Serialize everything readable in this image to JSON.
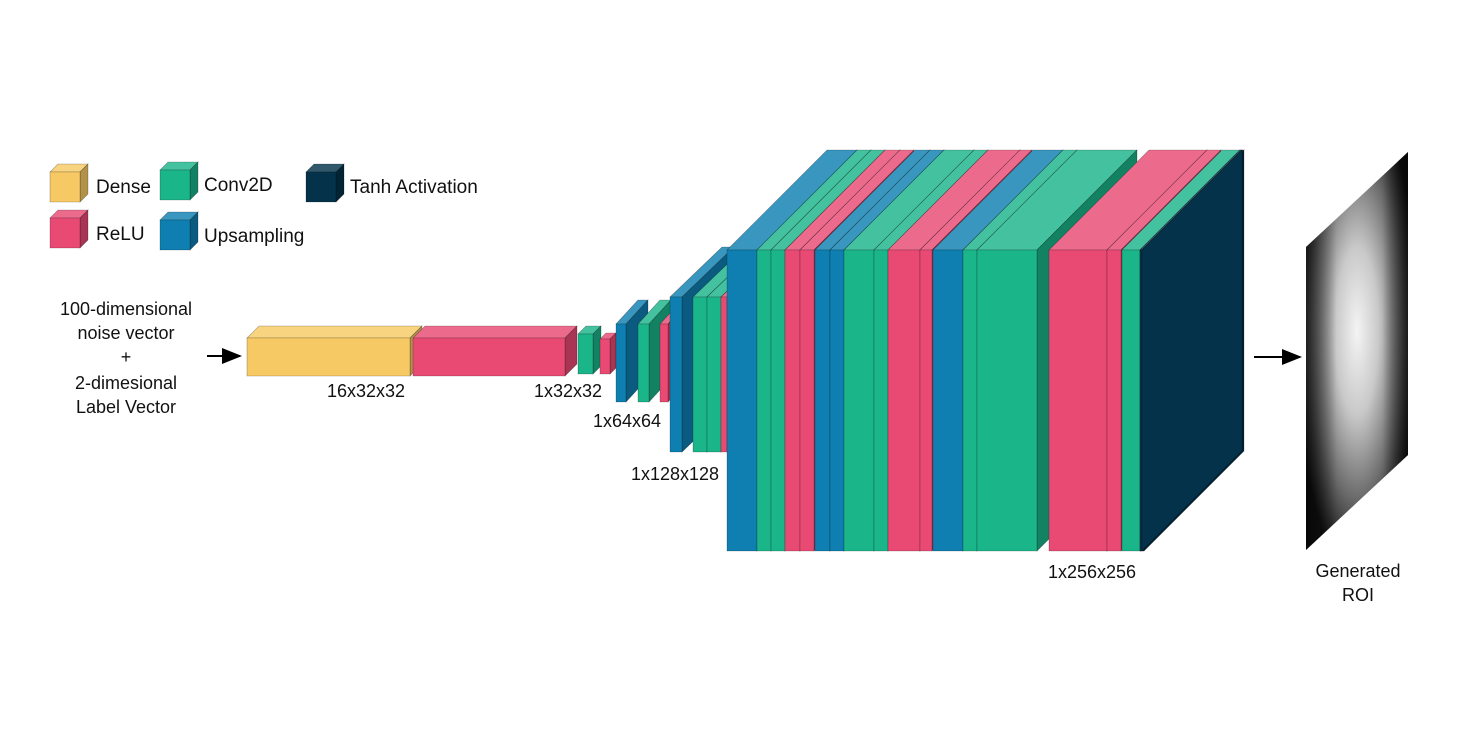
{
  "legend": {
    "dense": "Dense",
    "conv2d": "Conv2D",
    "tanh": "Tanh Activation",
    "relu": "ReLU",
    "upsampling": "Upsampling"
  },
  "input": {
    "line1": "100-dimensional",
    "line2": "noise vector",
    "line3": "+",
    "line4": "2-dimesional",
    "line5": "Label Vector"
  },
  "shapes": {
    "dense_out": "16x32x32",
    "stage1": "1x32x32",
    "stage2": "1x64x64",
    "stage3": "1x128x128",
    "stage4": "1x256x256"
  },
  "output": {
    "line1": "Generated",
    "line2": "ROI"
  },
  "colors": {
    "dense": "#F7C964",
    "relu": "#E84A73",
    "conv2d": "#1BB58A",
    "upsampling": "#0E7FB0",
    "tanh": "#04324A"
  }
}
